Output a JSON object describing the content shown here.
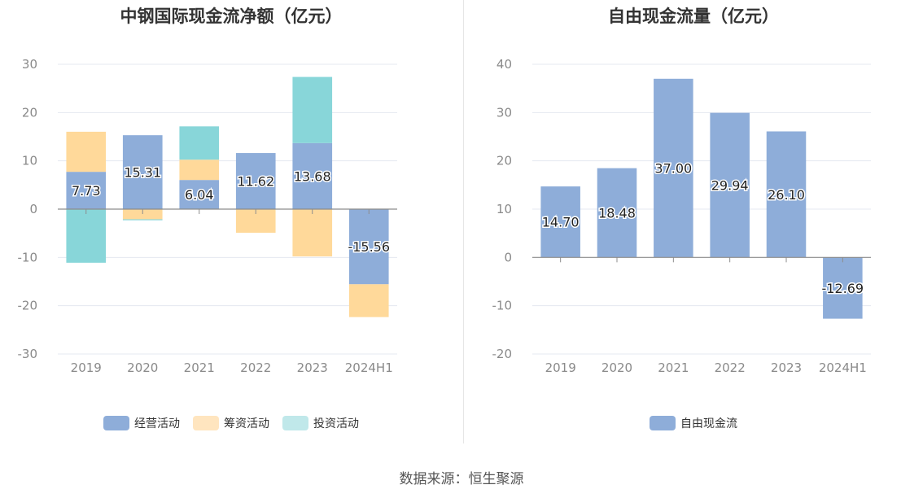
{
  "source_label": "数据来源：恒生聚源",
  "colors": {
    "operating": "#8eadd9",
    "financing": "#ffd99a",
    "investing": "#88d6d9",
    "free": "#8eadd9",
    "legend_financing": "#ffe5bf",
    "legend_investing": "#c0e8ea"
  },
  "chart_data": [
    {
      "type": "bar",
      "stacked": true,
      "title": "中钢国际现金流净额（亿元）",
      "categories": [
        "2019",
        "2020",
        "2021",
        "2022",
        "2023",
        "2024H1"
      ],
      "ylim": [
        -30,
        30
      ],
      "yticks": [
        30,
        20,
        10,
        0,
        -10,
        -20,
        -30
      ],
      "grid": true,
      "legend_position": "bottom",
      "series": [
        {
          "name": "经营活动",
          "values": [
            7.73,
            15.31,
            6.04,
            11.62,
            13.68,
            -15.56
          ],
          "labels": [
            "7.73",
            "15.31",
            "6.04",
            "11.62",
            "13.68",
            "-15.56"
          ]
        },
        {
          "name": "筹资活动",
          "values": [
            8.3,
            -2.1,
            4.2,
            -4.9,
            -9.8,
            -6.8
          ]
        },
        {
          "name": "投资活动",
          "values": [
            -11.1,
            -0.2,
            6.9,
            0,
            13.7,
            0
          ]
        }
      ]
    },
    {
      "type": "bar",
      "title": "自由现金流量（亿元）",
      "categories": [
        "2019",
        "2020",
        "2021",
        "2022",
        "2023",
        "2024H1"
      ],
      "ylim": [
        -20,
        40
      ],
      "yticks": [
        40,
        30,
        20,
        10,
        0,
        -10,
        -20
      ],
      "grid": true,
      "legend_position": "bottom",
      "series": [
        {
          "name": "自由现金流",
          "values": [
            14.7,
            18.48,
            37.0,
            29.94,
            26.1,
            -12.69
          ],
          "labels": [
            "14.70",
            "18.48",
            "37.00",
            "29.94",
            "26.10",
            "-12.69"
          ]
        }
      ]
    }
  ]
}
